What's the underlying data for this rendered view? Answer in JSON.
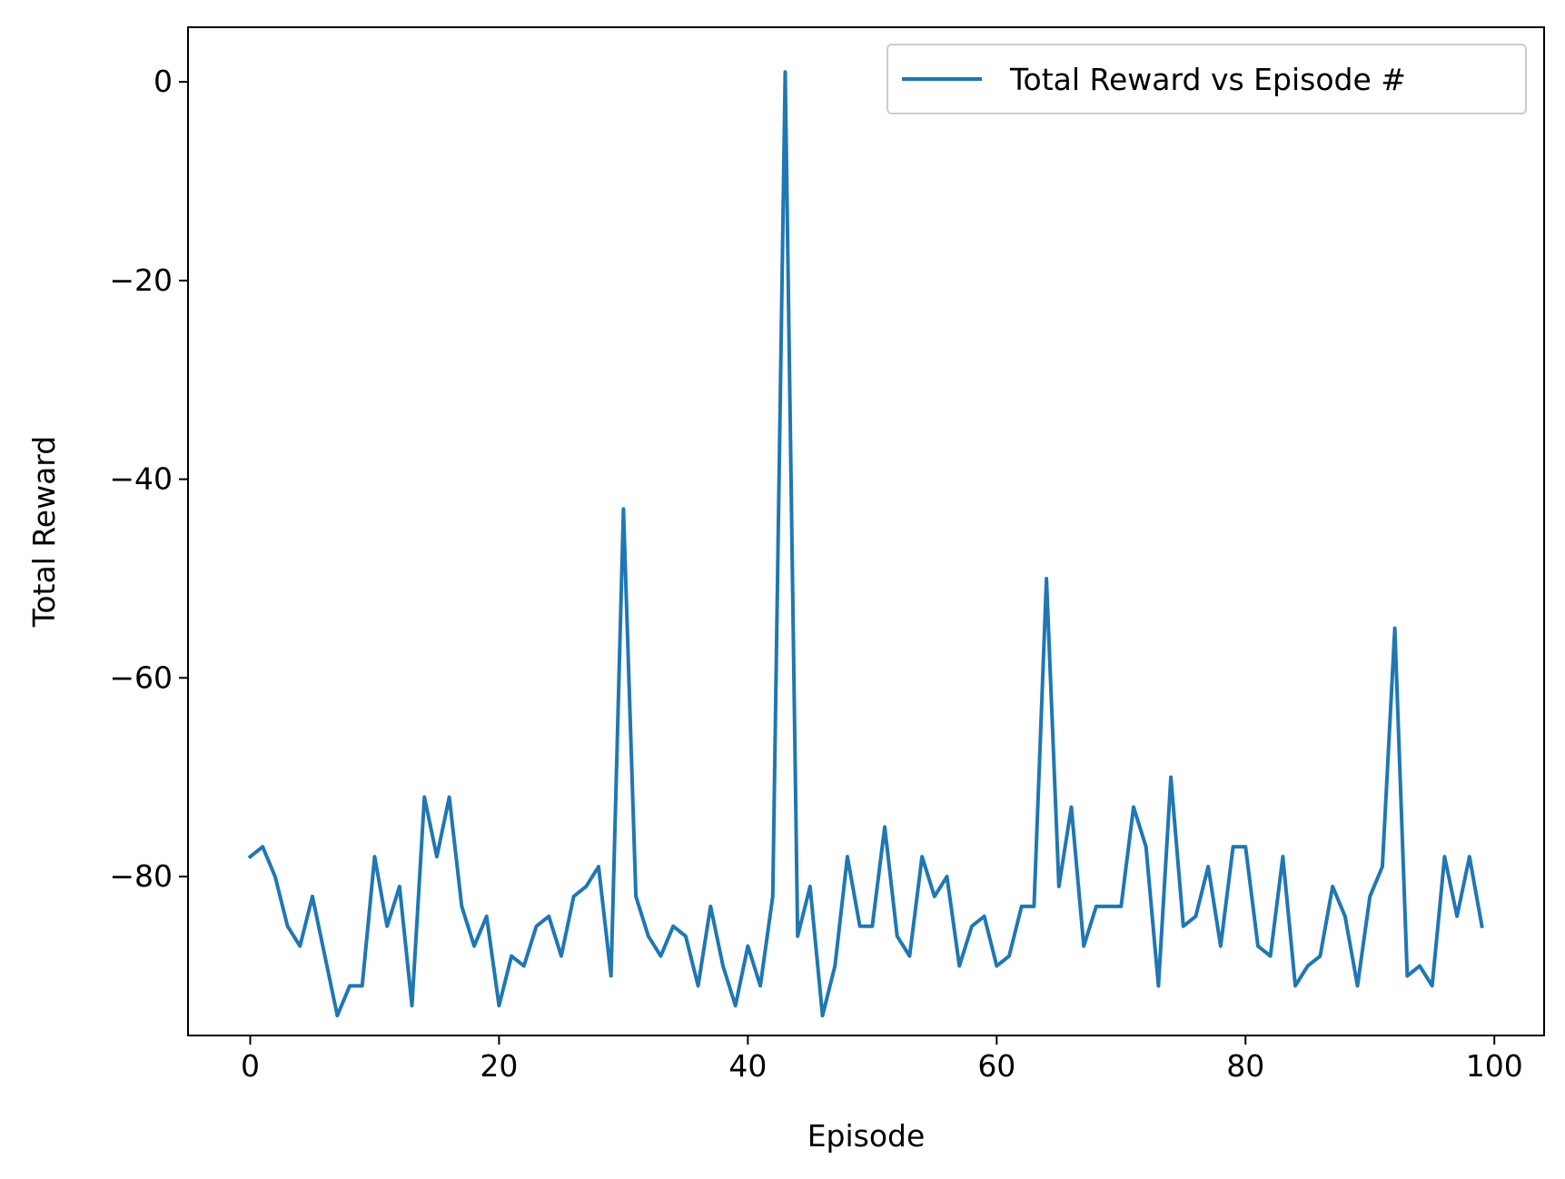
{
  "chart_data": {
    "type": "line",
    "title": "",
    "xlabel": "Episode",
    "ylabel": "Total Reward",
    "xlim": [
      -5,
      104
    ],
    "ylim": [
      -96,
      5.5
    ],
    "xticks": [
      0,
      20,
      40,
      60,
      80,
      100
    ],
    "xtick_labels": [
      "0",
      "20",
      "40",
      "60",
      "80",
      "100"
    ],
    "yticks": [
      0,
      -20,
      -40,
      -60,
      -80
    ],
    "ytick_labels": [
      "0",
      "−20",
      "−40",
      "−60",
      "−80"
    ],
    "grid": false,
    "legend_position": "upper right",
    "colors": {
      "line": "#1f77b4",
      "axes": "#000000",
      "legend_border": "#cccccc"
    },
    "series": [
      {
        "name": "Total Reward vs Episode #",
        "x": [
          0,
          1,
          2,
          3,
          4,
          5,
          6,
          7,
          8,
          9,
          10,
          11,
          12,
          13,
          14,
          15,
          16,
          17,
          18,
          19,
          20,
          21,
          22,
          23,
          24,
          25,
          26,
          27,
          28,
          29,
          30,
          31,
          32,
          33,
          34,
          35,
          36,
          37,
          38,
          39,
          40,
          41,
          42,
          43,
          44,
          45,
          46,
          47,
          48,
          49,
          50,
          51,
          52,
          53,
          54,
          55,
          56,
          57,
          58,
          59,
          60,
          61,
          62,
          63,
          64,
          65,
          66,
          67,
          68,
          69,
          70,
          71,
          72,
          73,
          74,
          75,
          76,
          77,
          78,
          79,
          80,
          81,
          82,
          83,
          84,
          85,
          86,
          87,
          88,
          89,
          90,
          91,
          92,
          93,
          94,
          95,
          96,
          97,
          98,
          99
        ],
        "y": [
          -78,
          -77,
          -80,
          -85,
          -87,
          -82,
          -88,
          -94,
          -91,
          -91,
          -78,
          -85,
          -81,
          -93,
          -72,
          -78,
          -72,
          -83,
          -87,
          -84,
          -93,
          -88,
          -89,
          -85,
          -84,
          -88,
          -82,
          -81,
          -79,
          -90,
          -43,
          -82,
          -86,
          -88,
          -85,
          -86,
          -91,
          -83,
          -89,
          -93,
          -87,
          -91,
          -82,
          1,
          -86,
          -81,
          -94,
          -89,
          -78,
          -85,
          -85,
          -75,
          -86,
          -88,
          -78,
          -82,
          -80,
          -89,
          -85,
          -84,
          -89,
          -88,
          -83,
          -83,
          -50,
          -81,
          -73,
          -87,
          -83,
          -83,
          -83,
          -73,
          -77,
          -91,
          -70,
          -85,
          -84,
          -79,
          -87,
          -77,
          -77,
          -87,
          -88,
          -78,
          -91,
          -89,
          -88,
          -81,
          -84,
          -91,
          -82,
          -79,
          -55,
          -90,
          -89,
          -91,
          -78,
          -84,
          -78,
          -85
        ]
      }
    ]
  }
}
